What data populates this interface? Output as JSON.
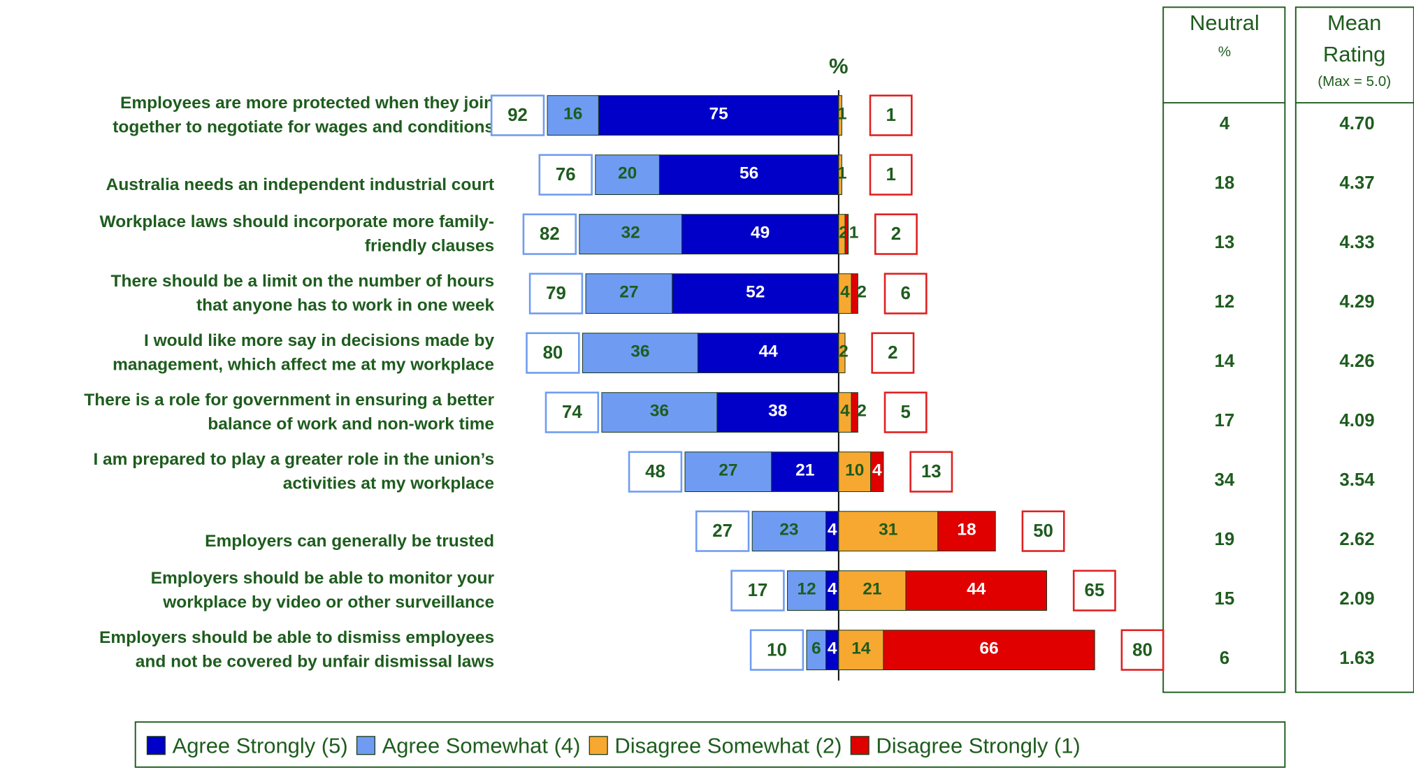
{
  "chart_data": {
    "type": "bar",
    "axis_label": "%",
    "categories": [
      [
        "Employees are more protected when they join",
        "together to negotiate for wages and conditions"
      ],
      [
        "Australia needs an independent industrial court"
      ],
      [
        "Workplace laws should incorporate more family-",
        "friendly clauses"
      ],
      [
        "There should be a limit on the number of hours",
        "that anyone has to work in one week"
      ],
      [
        "I would like more say in decisions made by",
        "management, which affect me at my workplace"
      ],
      [
        "There is a role for government in ensuring a better",
        "balance of work and non-work time"
      ],
      [
        "I am prepared to play a greater role in the union’s",
        "activities at my workplace"
      ],
      [
        "Employers can generally be trusted"
      ],
      [
        "Employers should be able to monitor your",
        "workplace by video or other surveillance"
      ],
      [
        "Employers should be able to dismiss employees",
        "and not be covered by unfair dismissal laws"
      ]
    ],
    "series": [
      {
        "name": "Agree Strongly (5)",
        "color": "#0000c8",
        "values": [
          75,
          56,
          49,
          52,
          44,
          38,
          21,
          4,
          4,
          4
        ]
      },
      {
        "name": "Agree Somewhat (4)",
        "color": "#6f9cf2",
        "values": [
          16,
          20,
          32,
          27,
          36,
          36,
          27,
          23,
          12,
          6
        ]
      },
      {
        "name": "Disagree Somewhat (2)",
        "color": "#f7a830",
        "values": [
          1,
          1,
          2,
          4,
          2,
          4,
          10,
          31,
          21,
          14
        ]
      },
      {
        "name": "Disagree Strongly (1)",
        "color": "#e00000",
        "values": [
          null,
          null,
          1,
          2,
          null,
          2,
          4,
          18,
          44,
          66
        ]
      }
    ],
    "agree_totals": [
      92,
      76,
      82,
      79,
      80,
      74,
      48,
      27,
      17,
      10
    ],
    "disagree_totals": [
      1,
      1,
      2,
      6,
      2,
      5,
      13,
      50,
      65,
      80
    ],
    "neutral": {
      "header": [
        "Neutral",
        "%"
      ],
      "values": [
        4,
        18,
        13,
        12,
        14,
        17,
        34,
        19,
        15,
        6
      ]
    },
    "mean_rating": {
      "header": [
        "Mean",
        "Rating",
        "(Max = 5.0)"
      ],
      "values": [
        4.7,
        4.37,
        4.33,
        4.29,
        4.26,
        4.09,
        3.54,
        2.62,
        2.09,
        1.63
      ],
      "value_labels": [
        "4.70",
        "4.37",
        "4.33",
        "4.29",
        "4.26",
        "4.09",
        "3.54",
        "2.62",
        "2.09",
        "1.63"
      ]
    }
  }
}
